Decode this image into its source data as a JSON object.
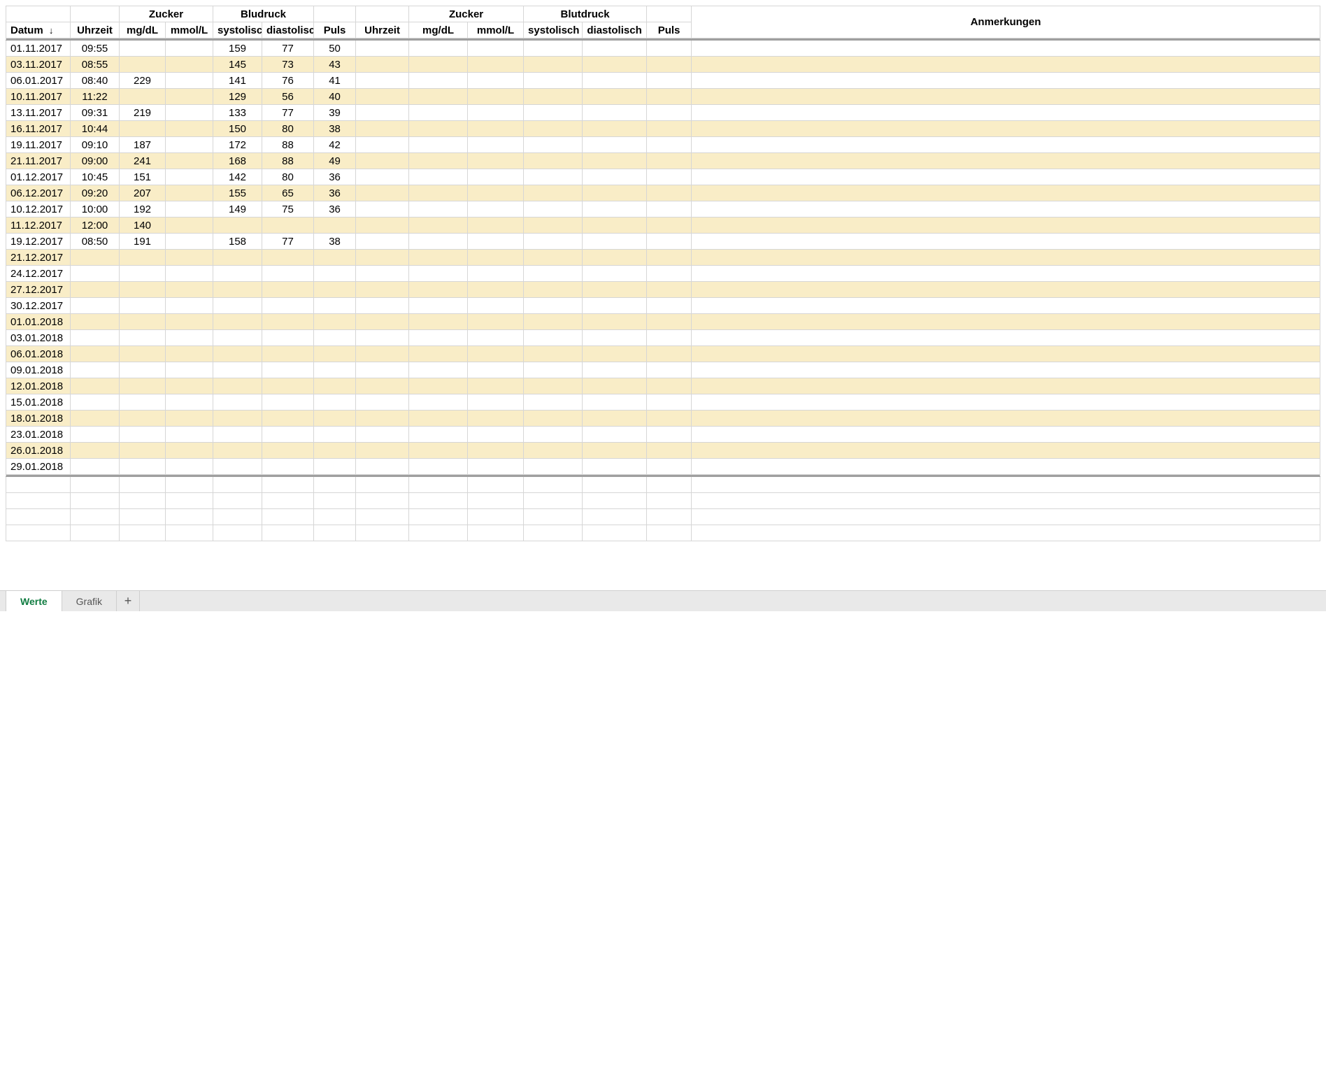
{
  "colors": {
    "stripe_bg": "#f9edc7",
    "plain_bg": "#ffffff",
    "border": "#d6d6d6",
    "tabbar_bg": "#e9e9e9",
    "active_tab_fg": "#107c41"
  },
  "table": {
    "header_groups": {
      "zucker1": "Zucker",
      "bludruck": "Bludruck",
      "zucker2": "Zucker",
      "blutdruck": "Blutdruck",
      "anmerkungen": "Anmerkungen"
    },
    "columns": {
      "datum": "Datum",
      "uhrzeit1": "Uhrzeit",
      "mgdl1": "mg/dL",
      "mmol1": "mmol/L",
      "sys1": "systolisch",
      "dia1": "diastolisch",
      "puls1": "Puls",
      "uhrzeit2": "Uhrzeit",
      "mgdl2": "mg/dL",
      "mmol2": "mmol/L",
      "sys2": "systolisch",
      "dia2": "diastolisch",
      "puls2": "Puls"
    },
    "sort_icon": "↓",
    "rows": [
      {
        "datum": "01.11.2017",
        "uhrzeit1": "09:55",
        "mgdl1": "",
        "mmol1": "",
        "sys1": "159",
        "dia1": "77",
        "puls1": "50",
        "uhrzeit2": "",
        "mgdl2": "",
        "mmol2": "",
        "sys2": "",
        "dia2": "",
        "puls2": "",
        "notes": ""
      },
      {
        "datum": "03.11.2017",
        "uhrzeit1": "08:55",
        "mgdl1": "",
        "mmol1": "",
        "sys1": "145",
        "dia1": "73",
        "puls1": "43",
        "uhrzeit2": "",
        "mgdl2": "",
        "mmol2": "",
        "sys2": "",
        "dia2": "",
        "puls2": "",
        "notes": ""
      },
      {
        "datum": "06.01.2017",
        "uhrzeit1": "08:40",
        "mgdl1": "229",
        "mmol1": "",
        "sys1": "141",
        "dia1": "76",
        "puls1": "41",
        "uhrzeit2": "",
        "mgdl2": "",
        "mmol2": "",
        "sys2": "",
        "dia2": "",
        "puls2": "",
        "notes": ""
      },
      {
        "datum": "10.11.2017",
        "uhrzeit1": "11:22",
        "mgdl1": "",
        "mmol1": "",
        "sys1": "129",
        "dia1": "56",
        "puls1": "40",
        "uhrzeit2": "",
        "mgdl2": "",
        "mmol2": "",
        "sys2": "",
        "dia2": "",
        "puls2": "",
        "notes": ""
      },
      {
        "datum": "13.11.2017",
        "uhrzeit1": "09:31",
        "mgdl1": "219",
        "mmol1": "",
        "sys1": "133",
        "dia1": "77",
        "puls1": "39",
        "uhrzeit2": "",
        "mgdl2": "",
        "mmol2": "",
        "sys2": "",
        "dia2": "",
        "puls2": "",
        "notes": ""
      },
      {
        "datum": "16.11.2017",
        "uhrzeit1": "10:44",
        "mgdl1": "",
        "mmol1": "",
        "sys1": "150",
        "dia1": "80",
        "puls1": "38",
        "uhrzeit2": "",
        "mgdl2": "",
        "mmol2": "",
        "sys2": "",
        "dia2": "",
        "puls2": "",
        "notes": ""
      },
      {
        "datum": "19.11.2017",
        "uhrzeit1": "09:10",
        "mgdl1": "187",
        "mmol1": "",
        "sys1": "172",
        "dia1": "88",
        "puls1": "42",
        "uhrzeit2": "",
        "mgdl2": "",
        "mmol2": "",
        "sys2": "",
        "dia2": "",
        "puls2": "",
        "notes": ""
      },
      {
        "datum": "21.11.2017",
        "uhrzeit1": "09:00",
        "mgdl1": "241",
        "mmol1": "",
        "sys1": "168",
        "dia1": "88",
        "puls1": "49",
        "uhrzeit2": "",
        "mgdl2": "",
        "mmol2": "",
        "sys2": "",
        "dia2": "",
        "puls2": "",
        "notes": ""
      },
      {
        "datum": "01.12.2017",
        "uhrzeit1": "10:45",
        "mgdl1": "151",
        "mmol1": "",
        "sys1": "142",
        "dia1": "80",
        "puls1": "36",
        "uhrzeit2": "",
        "mgdl2": "",
        "mmol2": "",
        "sys2": "",
        "dia2": "",
        "puls2": "",
        "notes": ""
      },
      {
        "datum": "06.12.2017",
        "uhrzeit1": "09:20",
        "mgdl1": "207",
        "mmol1": "",
        "sys1": "155",
        "dia1": "65",
        "puls1": "36",
        "uhrzeit2": "",
        "mgdl2": "",
        "mmol2": "",
        "sys2": "",
        "dia2": "",
        "puls2": "",
        "notes": ""
      },
      {
        "datum": "10.12.2017",
        "uhrzeit1": "10:00",
        "mgdl1": "192",
        "mmol1": "",
        "sys1": "149",
        "dia1": "75",
        "puls1": "36",
        "uhrzeit2": "",
        "mgdl2": "",
        "mmol2": "",
        "sys2": "",
        "dia2": "",
        "puls2": "",
        "notes": ""
      },
      {
        "datum": "11.12.2017",
        "uhrzeit1": "12:00",
        "mgdl1": "140",
        "mmol1": "",
        "sys1": "",
        "dia1": "",
        "puls1": "",
        "uhrzeit2": "",
        "mgdl2": "",
        "mmol2": "",
        "sys2": "",
        "dia2": "",
        "puls2": "",
        "notes": ""
      },
      {
        "datum": "19.12.2017",
        "uhrzeit1": "08:50",
        "mgdl1": "191",
        "mmol1": "",
        "sys1": "158",
        "dia1": "77",
        "puls1": "38",
        "uhrzeit2": "",
        "mgdl2": "",
        "mmol2": "",
        "sys2": "",
        "dia2": "",
        "puls2": "",
        "notes": ""
      },
      {
        "datum": "21.12.2017",
        "uhrzeit1": "",
        "mgdl1": "",
        "mmol1": "",
        "sys1": "",
        "dia1": "",
        "puls1": "",
        "uhrzeit2": "",
        "mgdl2": "",
        "mmol2": "",
        "sys2": "",
        "dia2": "",
        "puls2": "",
        "notes": ""
      },
      {
        "datum": "24.12.2017",
        "uhrzeit1": "",
        "mgdl1": "",
        "mmol1": "",
        "sys1": "",
        "dia1": "",
        "puls1": "",
        "uhrzeit2": "",
        "mgdl2": "",
        "mmol2": "",
        "sys2": "",
        "dia2": "",
        "puls2": "",
        "notes": ""
      },
      {
        "datum": "27.12.2017",
        "uhrzeit1": "",
        "mgdl1": "",
        "mmol1": "",
        "sys1": "",
        "dia1": "",
        "puls1": "",
        "uhrzeit2": "",
        "mgdl2": "",
        "mmol2": "",
        "sys2": "",
        "dia2": "",
        "puls2": "",
        "notes": ""
      },
      {
        "datum": "30.12.2017",
        "uhrzeit1": "",
        "mgdl1": "",
        "mmol1": "",
        "sys1": "",
        "dia1": "",
        "puls1": "",
        "uhrzeit2": "",
        "mgdl2": "",
        "mmol2": "",
        "sys2": "",
        "dia2": "",
        "puls2": "",
        "notes": ""
      },
      {
        "datum": "01.01.2018",
        "uhrzeit1": "",
        "mgdl1": "",
        "mmol1": "",
        "sys1": "",
        "dia1": "",
        "puls1": "",
        "uhrzeit2": "",
        "mgdl2": "",
        "mmol2": "",
        "sys2": "",
        "dia2": "",
        "puls2": "",
        "notes": ""
      },
      {
        "datum": "03.01.2018",
        "uhrzeit1": "",
        "mgdl1": "",
        "mmol1": "",
        "sys1": "",
        "dia1": "",
        "puls1": "",
        "uhrzeit2": "",
        "mgdl2": "",
        "mmol2": "",
        "sys2": "",
        "dia2": "",
        "puls2": "",
        "notes": ""
      },
      {
        "datum": "06.01.2018",
        "uhrzeit1": "",
        "mgdl1": "",
        "mmol1": "",
        "sys1": "",
        "dia1": "",
        "puls1": "",
        "uhrzeit2": "",
        "mgdl2": "",
        "mmol2": "",
        "sys2": "",
        "dia2": "",
        "puls2": "",
        "notes": ""
      },
      {
        "datum": "09.01.2018",
        "uhrzeit1": "",
        "mgdl1": "",
        "mmol1": "",
        "sys1": "",
        "dia1": "",
        "puls1": "",
        "uhrzeit2": "",
        "mgdl2": "",
        "mmol2": "",
        "sys2": "",
        "dia2": "",
        "puls2": "",
        "notes": ""
      },
      {
        "datum": "12.01.2018",
        "uhrzeit1": "",
        "mgdl1": "",
        "mmol1": "",
        "sys1": "",
        "dia1": "",
        "puls1": "",
        "uhrzeit2": "",
        "mgdl2": "",
        "mmol2": "",
        "sys2": "",
        "dia2": "",
        "puls2": "",
        "notes": ""
      },
      {
        "datum": "15.01.2018",
        "uhrzeit1": "",
        "mgdl1": "",
        "mmol1": "",
        "sys1": "",
        "dia1": "",
        "puls1": "",
        "uhrzeit2": "",
        "mgdl2": "",
        "mmol2": "",
        "sys2": "",
        "dia2": "",
        "puls2": "",
        "notes": ""
      },
      {
        "datum": "18.01.2018",
        "uhrzeit1": "",
        "mgdl1": "",
        "mmol1": "",
        "sys1": "",
        "dia1": "",
        "puls1": "",
        "uhrzeit2": "",
        "mgdl2": "",
        "mmol2": "",
        "sys2": "",
        "dia2": "",
        "puls2": "",
        "notes": ""
      },
      {
        "datum": "23.01.2018",
        "uhrzeit1": "",
        "mgdl1": "",
        "mmol1": "",
        "sys1": "",
        "dia1": "",
        "puls1": "",
        "uhrzeit2": "",
        "mgdl2": "",
        "mmol2": "",
        "sys2": "",
        "dia2": "",
        "puls2": "",
        "notes": ""
      },
      {
        "datum": "26.01.2018",
        "uhrzeit1": "",
        "mgdl1": "",
        "mmol1": "",
        "sys1": "",
        "dia1": "",
        "puls1": "",
        "uhrzeit2": "",
        "mgdl2": "",
        "mmol2": "",
        "sys2": "",
        "dia2": "",
        "puls2": "",
        "notes": ""
      },
      {
        "datum": "29.01.2018",
        "uhrzeit1": "",
        "mgdl1": "",
        "mmol1": "",
        "sys1": "",
        "dia1": "",
        "puls1": "",
        "uhrzeit2": "",
        "mgdl2": "",
        "mmol2": "",
        "sys2": "",
        "dia2": "",
        "puls2": "",
        "notes": ""
      }
    ],
    "trailing_blank_rows": 4
  },
  "tabs": {
    "werte": "Werte",
    "grafik": "Grafik",
    "add": "+"
  }
}
